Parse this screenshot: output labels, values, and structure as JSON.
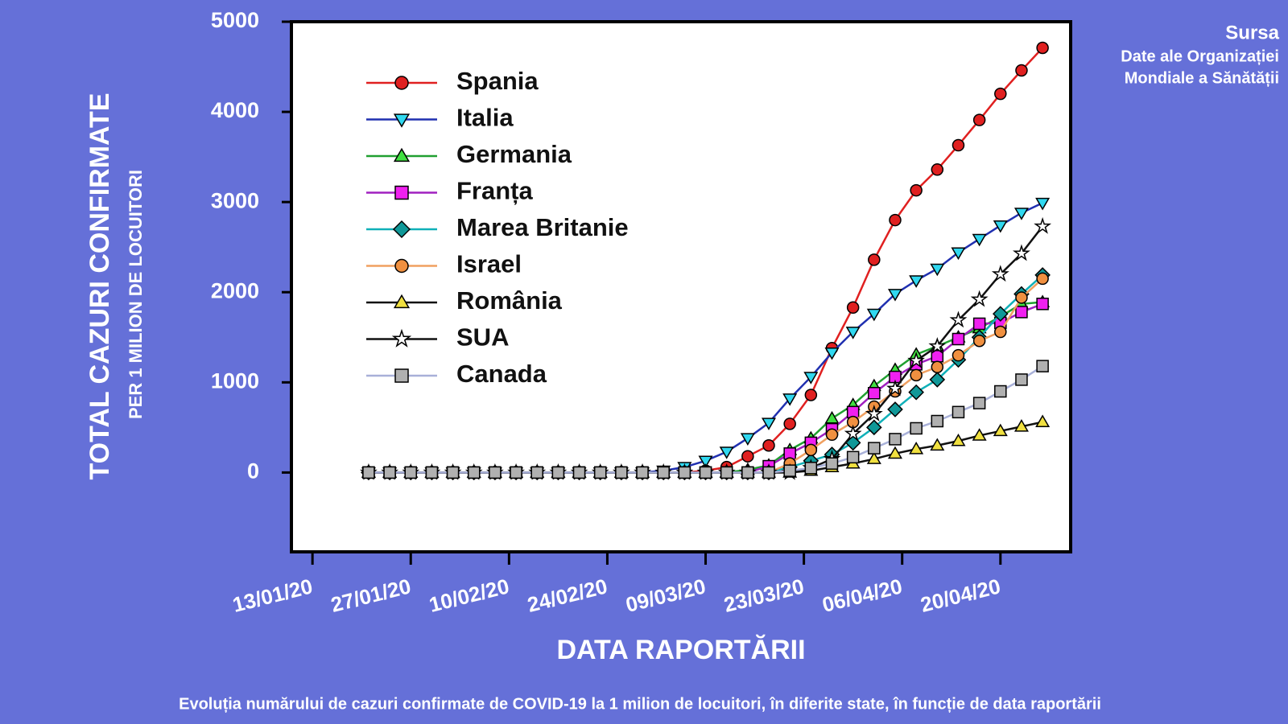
{
  "chart_data": {
    "type": "line",
    "ylabel": "TOTAL CAZURI CONFIRMATE",
    "ylabel_sub": "PER 1 MILION DE LOCUITORI",
    "xlabel": "DATA RAPORTĂRII",
    "source_title": "Sursa",
    "source_lines": [
      "Date ale Organizației",
      "Mondiale a Sănătății"
    ],
    "caption": "Evoluția numărului de cazuri confirmate de COVID-19 la 1 milion de locuitori, în diferite state, în funcție de data raportării",
    "x": [
      "21/01/20",
      "24/01/20",
      "27/01/20",
      "30/01/20",
      "02/02/20",
      "05/02/20",
      "08/02/20",
      "11/02/20",
      "14/02/20",
      "17/02/20",
      "20/02/20",
      "23/02/20",
      "26/02/20",
      "29/02/20",
      "03/03/20",
      "06/03/20",
      "09/03/20",
      "12/03/20",
      "15/03/20",
      "18/03/20",
      "21/03/20",
      "24/03/20",
      "27/03/20",
      "30/03/20",
      "02/04/20",
      "05/04/20",
      "08/04/20",
      "11/04/20",
      "14/04/20",
      "17/04/20",
      "20/04/20",
      "23/04/20",
      "26/04/20"
    ],
    "xlim": [
      "10/01/20",
      "30/04/20"
    ],
    "xticks": [
      "13/01/20",
      "27/01/20",
      "10/02/20",
      "24/02/20",
      "09/03/20",
      "23/03/20",
      "06/04/20",
      "20/04/20"
    ],
    "ylim": [
      -880,
      5000
    ],
    "yticks": [
      0,
      1000,
      2000,
      3000,
      4000,
      5000
    ],
    "legend": "upper left",
    "series": [
      {
        "name": "Spania",
        "color": "#e02020",
        "marker": "circle",
        "marker_color": "#e02020",
        "values": [
          0,
          0,
          0,
          0,
          0,
          0,
          0,
          0,
          0,
          0,
          0,
          0,
          0,
          0,
          0,
          0,
          20,
          60,
          180,
          300,
          540,
          860,
          1380,
          1830,
          2360,
          2800,
          3130,
          3360,
          3630,
          3910,
          4200,
          4460,
          4710
        ]
      },
      {
        "name": "Italia",
        "color": "#2030b0",
        "marker": "triangle-down",
        "marker_color": "#30d8f0",
        "values": [
          0,
          0,
          0,
          0,
          0,
          0,
          0,
          0,
          0,
          0,
          0,
          0,
          0,
          0,
          20,
          60,
          130,
          230,
          380,
          550,
          820,
          1060,
          1330,
          1560,
          1760,
          1980,
          2130,
          2260,
          2440,
          2590,
          2740,
          2880,
          2990
        ]
      },
      {
        "name": "Germania",
        "color": "#20a030",
        "marker": "triangle",
        "marker_color": "#40e040",
        "values": [
          0,
          0,
          0,
          0,
          0,
          0,
          0,
          0,
          0,
          0,
          0,
          0,
          0,
          0,
          0,
          0,
          0,
          0,
          30,
          80,
          250,
          380,
          600,
          750,
          960,
          1140,
          1310,
          1400,
          1500,
          1600,
          1730,
          1870,
          1890
        ]
      },
      {
        "name": "Franța",
        "color": "#a020c0",
        "marker": "square",
        "marker_color": "#f020f0",
        "values": [
          0,
          0,
          0,
          0,
          0,
          0,
          0,
          0,
          0,
          0,
          0,
          0,
          0,
          0,
          0,
          0,
          0,
          0,
          0,
          70,
          210,
          330,
          480,
          670,
          880,
          1060,
          1200,
          1290,
          1480,
          1650,
          1660,
          1780,
          1870
        ]
      },
      {
        "name": "Marea Britanie",
        "color": "#10b0b8",
        "marker": "diamond",
        "marker_color": "#109898",
        "values": [
          0,
          0,
          0,
          0,
          0,
          0,
          0,
          0,
          0,
          0,
          0,
          0,
          0,
          0,
          0,
          0,
          0,
          0,
          0,
          0,
          60,
          130,
          200,
          330,
          500,
          700,
          890,
          1030,
          1250,
          1500,
          1760,
          1980,
          2190
        ]
      },
      {
        "name": "Israel",
        "color": "#f0a060",
        "marker": "circle",
        "marker_color": "#f09040",
        "values": [
          0,
          0,
          0,
          0,
          0,
          0,
          0,
          0,
          0,
          0,
          0,
          0,
          0,
          0,
          0,
          0,
          0,
          0,
          0,
          0,
          100,
          250,
          420,
          560,
          730,
          900,
          1080,
          1170,
          1300,
          1460,
          1560,
          1940,
          2150
        ]
      },
      {
        "name": "România",
        "color": "#111111",
        "marker": "triangle",
        "marker_color": "#f0e040",
        "values": [
          0,
          0,
          0,
          0,
          0,
          0,
          0,
          0,
          0,
          0,
          0,
          0,
          0,
          0,
          0,
          0,
          0,
          0,
          0,
          0,
          0,
          20,
          60,
          100,
          150,
          210,
          260,
          300,
          350,
          410,
          460,
          510,
          560
        ]
      },
      {
        "name": "SUA",
        "color": "#111111",
        "marker": "star",
        "marker_color": "#ffffff",
        "values": [
          0,
          0,
          0,
          0,
          0,
          0,
          0,
          0,
          0,
          0,
          0,
          0,
          0,
          0,
          0,
          0,
          0,
          0,
          0,
          0,
          0,
          50,
          150,
          430,
          650,
          930,
          1240,
          1400,
          1690,
          1920,
          2200,
          2430,
          2730
        ]
      },
      {
        "name": "Canada",
        "color": "#a8b0d8",
        "marker": "square",
        "marker_color": "#b0b0b0",
        "values": [
          0,
          0,
          0,
          0,
          0,
          0,
          0,
          0,
          0,
          0,
          0,
          0,
          0,
          0,
          0,
          0,
          0,
          0,
          0,
          0,
          20,
          50,
          100,
          170,
          270,
          370,
          490,
          570,
          670,
          770,
          900,
          1030,
          1180
        ]
      }
    ]
  }
}
